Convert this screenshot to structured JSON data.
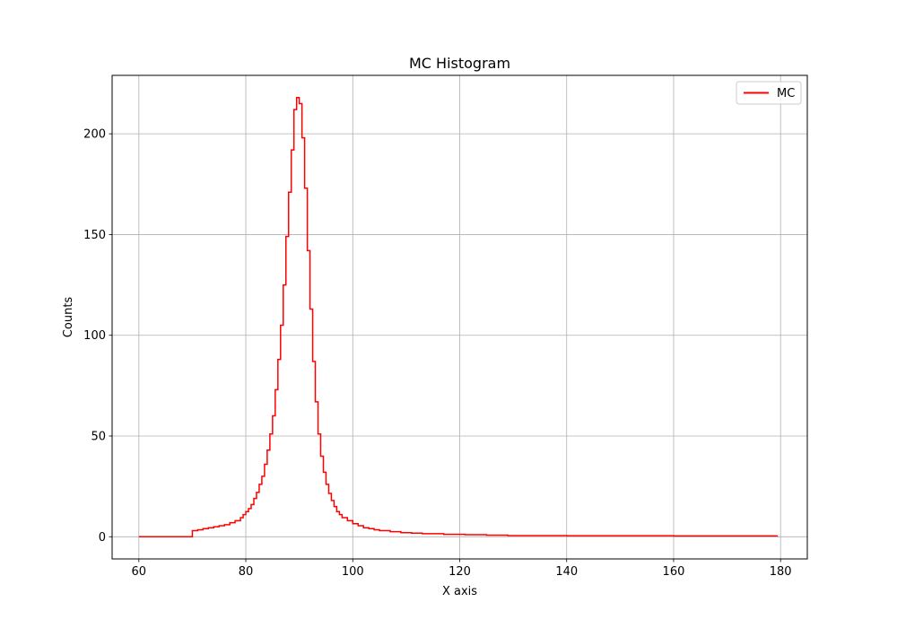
{
  "chart_data": {
    "type": "line",
    "drawstyle": "steps-post",
    "title": "MC Histogram",
    "xlabel": "X axis",
    "ylabel": "Counts",
    "xlim": [
      55,
      185
    ],
    "ylim": [
      -11,
      229
    ],
    "xticks": [
      60,
      80,
      100,
      120,
      140,
      160,
      180
    ],
    "yticks": [
      0,
      50,
      100,
      150,
      200
    ],
    "grid": true,
    "legend_position": "top-right",
    "series": [
      {
        "name": "MC",
        "color": "#ff0000",
        "x": [
          60,
          70,
          71,
          72,
          73,
          74,
          75,
          76,
          77,
          78,
          79,
          79.5,
          80,
          80.5,
          81,
          81.5,
          82,
          82.5,
          83,
          83.5,
          84,
          84.5,
          85,
          85.5,
          86,
          86.5,
          87,
          87.5,
          88,
          88.5,
          89,
          89.5,
          90,
          90.5,
          91,
          91.5,
          92,
          92.5,
          93,
          93.5,
          94,
          94.5,
          95,
          95.5,
          96,
          96.5,
          97,
          97.5,
          98,
          99,
          100,
          101,
          102,
          103,
          104,
          105,
          107,
          109,
          111,
          113,
          117,
          121,
          125,
          129,
          140,
          160,
          179.5
        ],
        "y": [
          0,
          3,
          3.5,
          4,
          4.5,
          5,
          5.5,
          6,
          7,
          8,
          9.5,
          11,
          12.5,
          14,
          16,
          19,
          22,
          26,
          30,
          36,
          43,
          51,
          60,
          73,
          88,
          105,
          125,
          149,
          171,
          192,
          212,
          218,
          215,
          198,
          173,
          142,
          113,
          87,
          67,
          51,
          40,
          32,
          26,
          21.5,
          18,
          15,
          12.5,
          11,
          9.5,
          8,
          6.5,
          5.5,
          4.5,
          4,
          3.5,
          3,
          2.5,
          2,
          1.8,
          1.5,
          1.2,
          1,
          0.8,
          0.6,
          0.5,
          0.4,
          0.4
        ]
      }
    ]
  }
}
